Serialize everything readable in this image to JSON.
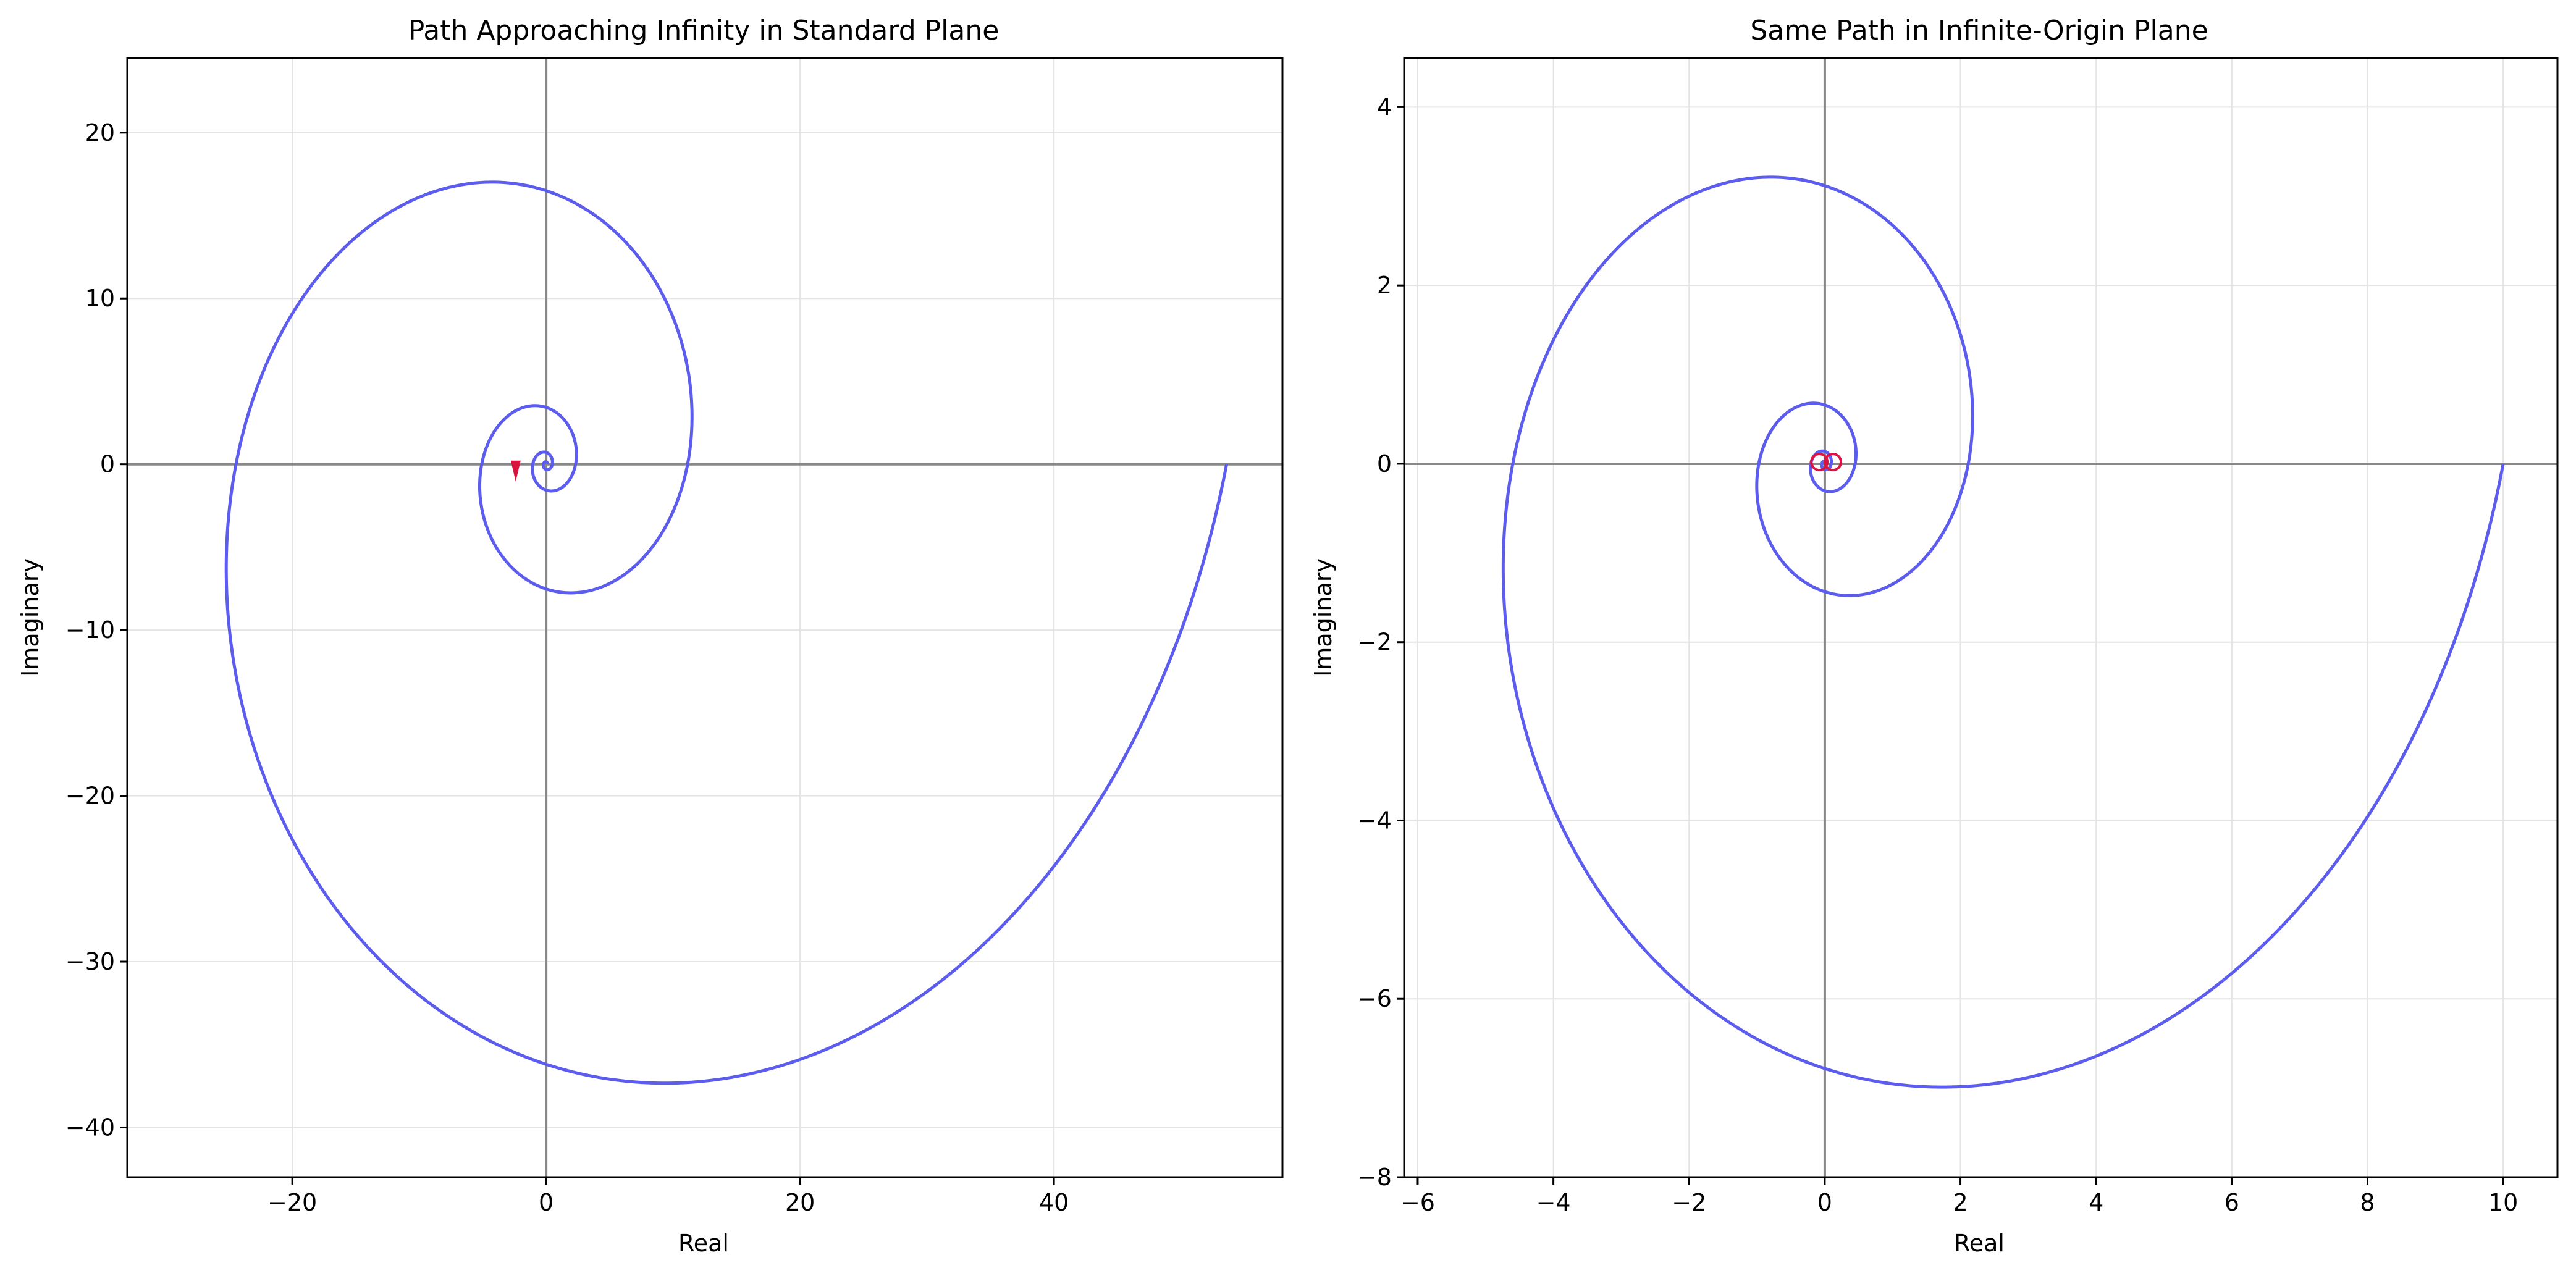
{
  "figure": {
    "colors": {
      "path": "#5c5cee",
      "marker": "#d9143f",
      "axis_line": "#888888",
      "grid": "#e4e4e4"
    }
  },
  "chart_data": [
    {
      "type": "line",
      "title": "Path Approaching Infinity in Standard Plane",
      "xlabel": "Real",
      "ylabel": "Imaginary",
      "xlim": [
        -33,
        58
      ],
      "ylim": [
        -43,
        24.5
      ],
      "xticks": [
        -20,
        0,
        20,
        40
      ],
      "yticks": [
        -40,
        -30,
        -20,
        -10,
        0,
        10,
        20
      ],
      "grid": true,
      "series": [
        {
          "kind": "spiral",
          "start": [
            53.6,
            0
          ],
          "end_radius": 0.1,
          "turns": 4,
          "note_values": "logarithmic spiral in data units"
        }
      ],
      "marker": {
        "kind": "arrow",
        "x": -2.4,
        "y": -0.6
      }
    },
    {
      "type": "line",
      "title": "Same Path in Infinite-Origin Plane",
      "xlabel": "Real",
      "ylabel": "Imaginary",
      "xlim": [
        -6.2,
        10.8
      ],
      "ylim": [
        -8,
        4.55
      ],
      "xticks": [
        -6,
        -4,
        -2,
        0,
        2,
        4,
        6,
        8,
        10
      ],
      "yticks": [
        -8,
        -6,
        -4,
        -2,
        0,
        2,
        4
      ],
      "grid": true,
      "series": [
        {
          "kind": "spiral",
          "start": [
            10,
            0
          ],
          "end_radius": 0.02,
          "turns": 4
        }
      ],
      "marker": {
        "kind": "circles",
        "points": [
          [
            -0.08,
            0.02
          ],
          [
            0.12,
            0.02
          ]
        ]
      }
    }
  ]
}
